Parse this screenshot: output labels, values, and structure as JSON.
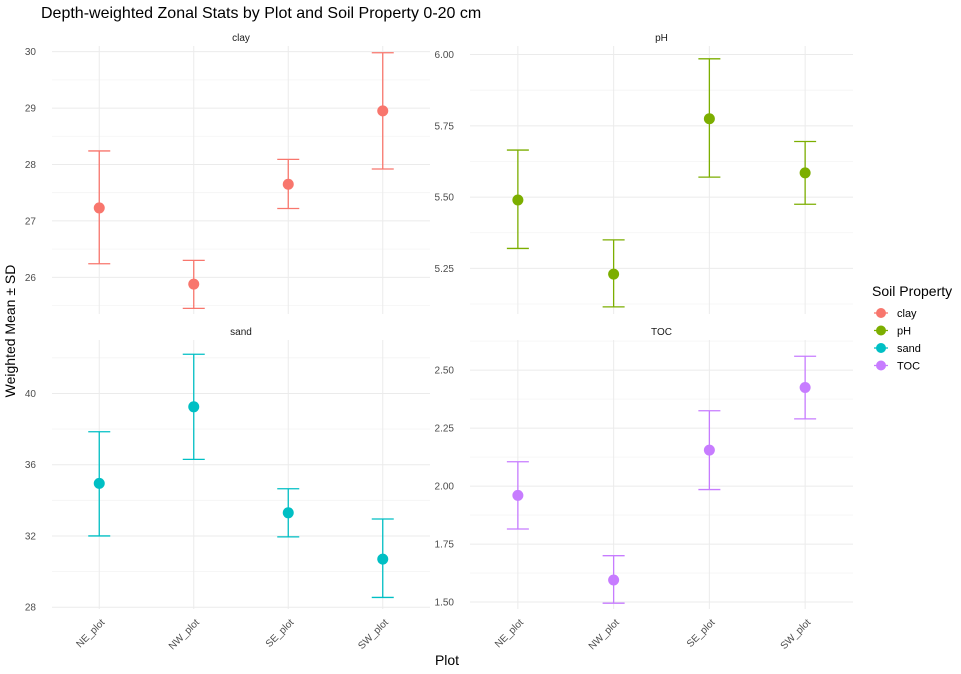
{
  "chart_data": {
    "type": "errorbar",
    "title": "Depth-weighted Zonal Stats by Plot and Soil Property 0-20 cm",
    "xlabel": "Plot",
    "ylabel": "Weighted Mean ± SD",
    "categories": [
      "NE_plot",
      "NW_plot",
      "SE_plot",
      "SW_plot"
    ],
    "legend": {
      "title": "Soil Property",
      "position": "right",
      "items": [
        {
          "label": "clay",
          "color": "#F8766D"
        },
        {
          "label": "pH",
          "color": "#7CAE00"
        },
        {
          "label": "sand",
          "color": "#00BFC4"
        },
        {
          "label": "TOC",
          "color": "#C77CFF"
        }
      ]
    },
    "grid": true,
    "panels": [
      {
        "label": "clay",
        "color": "#F8766D",
        "ylim": [
          25.35,
          30.1
        ],
        "yticks": [
          26,
          27,
          28,
          29,
          30
        ],
        "tick_labels": [
          "26",
          "27",
          "28",
          "29",
          "30"
        ],
        "mean": [
          27.23,
          25.88,
          27.65,
          28.95
        ],
        "lower": [
          26.24,
          25.45,
          27.22,
          27.92
        ],
        "upper": [
          28.24,
          26.3,
          28.09,
          29.98
        ]
      },
      {
        "label": "pH",
        "color": "#7CAE00",
        "ylim": [
          5.09,
          6.03
        ],
        "yticks": [
          5.25,
          5.5,
          5.75,
          6.0
        ],
        "tick_labels": [
          "5.25",
          "5.50",
          "5.75",
          "6.00"
        ],
        "mean": [
          5.49,
          5.23,
          5.775,
          5.585
        ],
        "lower": [
          5.32,
          5.115,
          5.57,
          5.475
        ],
        "upper": [
          5.665,
          5.35,
          5.985,
          5.695
        ]
      },
      {
        "label": "sand",
        "color": "#00BFC4",
        "ylim": [
          27.9,
          43.0
        ],
        "yticks": [
          28,
          32,
          36,
          40
        ],
        "tick_labels": [
          "28",
          "32",
          "36",
          "40"
        ],
        "mean": [
          34.95,
          39.25,
          33.3,
          30.7
        ],
        "lower": [
          32.0,
          36.3,
          31.95,
          28.55
        ],
        "upper": [
          37.85,
          42.2,
          34.65,
          32.95
        ]
      },
      {
        "label": "TOC",
        "color": "#C77CFF",
        "ylim": [
          1.47,
          2.63
        ],
        "yticks": [
          1.5,
          1.75,
          2.0,
          2.25,
          2.5
        ],
        "tick_labels": [
          "1.50",
          "1.75",
          "2.00",
          "2.25",
          "2.50"
        ],
        "mean": [
          1.96,
          1.595,
          2.155,
          2.425
        ],
        "lower": [
          1.815,
          1.495,
          1.985,
          2.29
        ],
        "upper": [
          2.105,
          1.7,
          2.325,
          2.56
        ]
      }
    ]
  }
}
